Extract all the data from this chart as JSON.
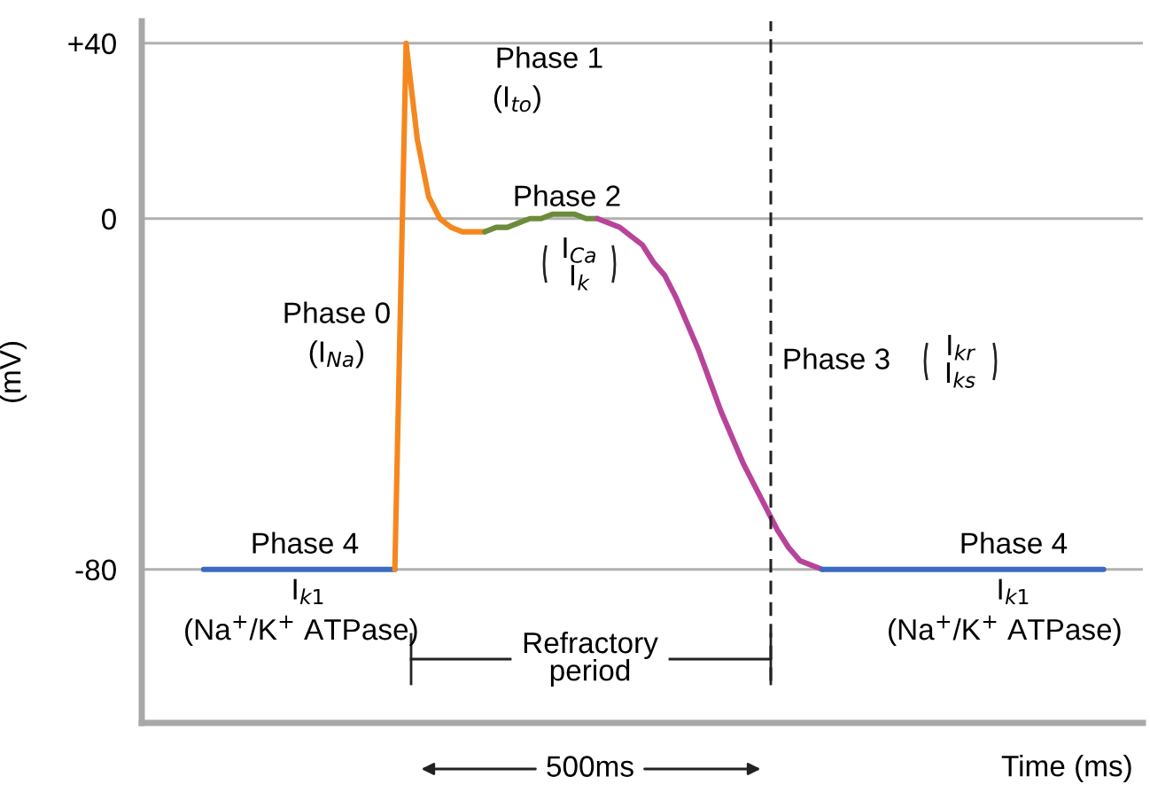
{
  "chart_data": {
    "type": "line",
    "xlabel": "Time (ms)",
    "ylabel": "(mV)",
    "categories": [
      null,
      null,
      null,
      null,
      null,
      null,
      null,
      null,
      null,
      null,
      null,
      null,
      null,
      null,
      null,
      null,
      null,
      null,
      null,
      null,
      null,
      null,
      null,
      null,
      null,
      null,
      null,
      null,
      null,
      null,
      null,
      null,
      null,
      null,
      null,
      null,
      null,
      null,
      null,
      null,
      null,
      null,
      null,
      null,
      null,
      null,
      null,
      null,
      null,
      null,
      null,
      null,
      null,
      null,
      null,
      null,
      null,
      null,
      null,
      null,
      null,
      null,
      null,
      null,
      null,
      null,
      null,
      null,
      null,
      null,
      null,
      null,
      null,
      null,
      null,
      null,
      null,
      null,
      null,
      null,
      null,
      null,
      null,
      null,
      null,
      null,
      null,
      null,
      null
    ],
    "series": [
      {
        "color": "#3b6bbf",
        "values": [
          null,
          null,
          null,
          null,
          null,
          -80,
          -80,
          -80,
          -80,
          -80,
          -80,
          -80,
          -80,
          -80,
          -80,
          -80,
          -80,
          -80,
          -80,
          -80,
          -80,
          -80,
          -80,
          null,
          null,
          null,
          null,
          null,
          null,
          null,
          null,
          null,
          null,
          null,
          null,
          null,
          null,
          null,
          null,
          null,
          null,
          null,
          null,
          null,
          null,
          null,
          null,
          null,
          null,
          null,
          null,
          null,
          null,
          null,
          null,
          null,
          null,
          null,
          null,
          null,
          null,
          null,
          null,
          null,
          null,
          null,
          null,
          null,
          null,
          null,
          null,
          null,
          null,
          null,
          null,
          null,
          null,
          null,
          null,
          null,
          null,
          null,
          null,
          null,
          null,
          null,
          null,
          null,
          null
        ]
      },
      {
        "color": "#f5871f",
        "values": [
          null,
          null,
          null,
          null,
          null,
          null,
          null,
          null,
          null,
          null,
          null,
          null,
          null,
          null,
          null,
          null,
          null,
          null,
          null,
          null,
          null,
          null,
          -80,
          40,
          18,
          5,
          0,
          -2,
          -3,
          -3,
          -3,
          null,
          null,
          null,
          null,
          null,
          null,
          null,
          null,
          null,
          null,
          null,
          null,
          null,
          null,
          null,
          null,
          null,
          null,
          null,
          null,
          null,
          null,
          null,
          null,
          null,
          null,
          null,
          null,
          null,
          null,
          null,
          null,
          null,
          null,
          null,
          null,
          null,
          null,
          null,
          null,
          null,
          null,
          null,
          null,
          null,
          null,
          null,
          null,
          null,
          null,
          null,
          null,
          null,
          null,
          null,
          null,
          null,
          null
        ]
      },
      {
        "color": "#6b8c3a",
        "values": [
          null,
          null,
          null,
          null,
          null,
          null,
          null,
          null,
          null,
          null,
          null,
          null,
          null,
          null,
          null,
          null,
          null,
          null,
          null,
          null,
          null,
          null,
          null,
          null,
          null,
          null,
          null,
          null,
          null,
          null,
          -3,
          -2,
          -2,
          -1,
          0,
          0,
          1,
          1,
          1,
          0,
          0,
          null,
          null,
          null,
          null,
          null,
          null,
          null,
          null,
          null,
          null,
          null,
          null,
          null,
          null,
          null,
          null,
          null,
          null,
          null,
          null,
          null,
          null,
          null,
          null,
          null,
          null,
          null,
          null,
          null,
          null,
          null,
          null,
          null,
          null,
          null,
          null,
          null,
          null,
          null,
          null,
          null,
          null,
          null,
          null,
          null,
          null,
          null,
          null
        ]
      },
      {
        "color": "#b8449a",
        "values": [
          null,
          null,
          null,
          null,
          null,
          null,
          null,
          null,
          null,
          null,
          null,
          null,
          null,
          null,
          null,
          null,
          null,
          null,
          null,
          null,
          null,
          null,
          null,
          null,
          null,
          null,
          null,
          null,
          null,
          null,
          null,
          null,
          null,
          null,
          null,
          null,
          null,
          null,
          null,
          null,
          0,
          -1,
          -2,
          -4,
          -6,
          -10,
          -13,
          -18,
          -24,
          -30,
          -37,
          -44,
          -50,
          -56,
          -61,
          -66,
          -71,
          -75,
          -78,
          -79,
          -80,
          null,
          null,
          null,
          null,
          null,
          null,
          null,
          null,
          null,
          null,
          null,
          null,
          null,
          null,
          null,
          null,
          null,
          null,
          null,
          null,
          null,
          null,
          null,
          null,
          null,
          null,
          null,
          null
        ]
      },
      {
        "color": "#3b6bbf",
        "values": [
          null,
          null,
          null,
          null,
          null,
          null,
          null,
          null,
          null,
          null,
          null,
          null,
          null,
          null,
          null,
          null,
          null,
          null,
          null,
          null,
          null,
          null,
          null,
          null,
          null,
          null,
          null,
          null,
          null,
          null,
          null,
          null,
          null,
          null,
          null,
          null,
          null,
          null,
          null,
          null,
          null,
          null,
          null,
          null,
          null,
          null,
          null,
          null,
          null,
          null,
          null,
          null,
          null,
          null,
          null,
          null,
          null,
          null,
          null,
          null,
          -80,
          -80,
          -80,
          -80,
          -80,
          -80,
          -80,
          -80,
          -80,
          -80,
          -80,
          -80,
          -80,
          -80,
          -80,
          -80,
          -80,
          -80,
          -80,
          -80,
          -80,
          -80,
          -80,
          -80,
          -80,
          -80,
          null,
          null,
          null
        ]
      }
    ],
    "ylim": [
      -115,
      45
    ],
    "yticks": [
      {
        "value": 40,
        "label": "+40"
      },
      0,
      {
        "value": -80,
        "label": "-80"
      }
    ],
    "grid": "y",
    "tick_labels": "y",
    "line_style": "solid",
    "annotations": [
      "Phase 1",
      "(I$_{to}$)",
      "Phase 2",
      "I$_{Ca}$\nI$_{k}$",
      "Phase 0",
      "(I$_{Na}$)",
      "Phase 3",
      "I$_{kr}$\nI$_{ks}$",
      "Phase 4",
      "I$_{k1}$",
      "(Na$^{+}$/K$^{+}$ ATPase)",
      "Phase 4",
      "I$_{k1}$",
      "(Na$^{+}$/K$^{+}$ ATPase)",
      "Refractory\nperiod",
      "500ms"
    ]
  }
}
